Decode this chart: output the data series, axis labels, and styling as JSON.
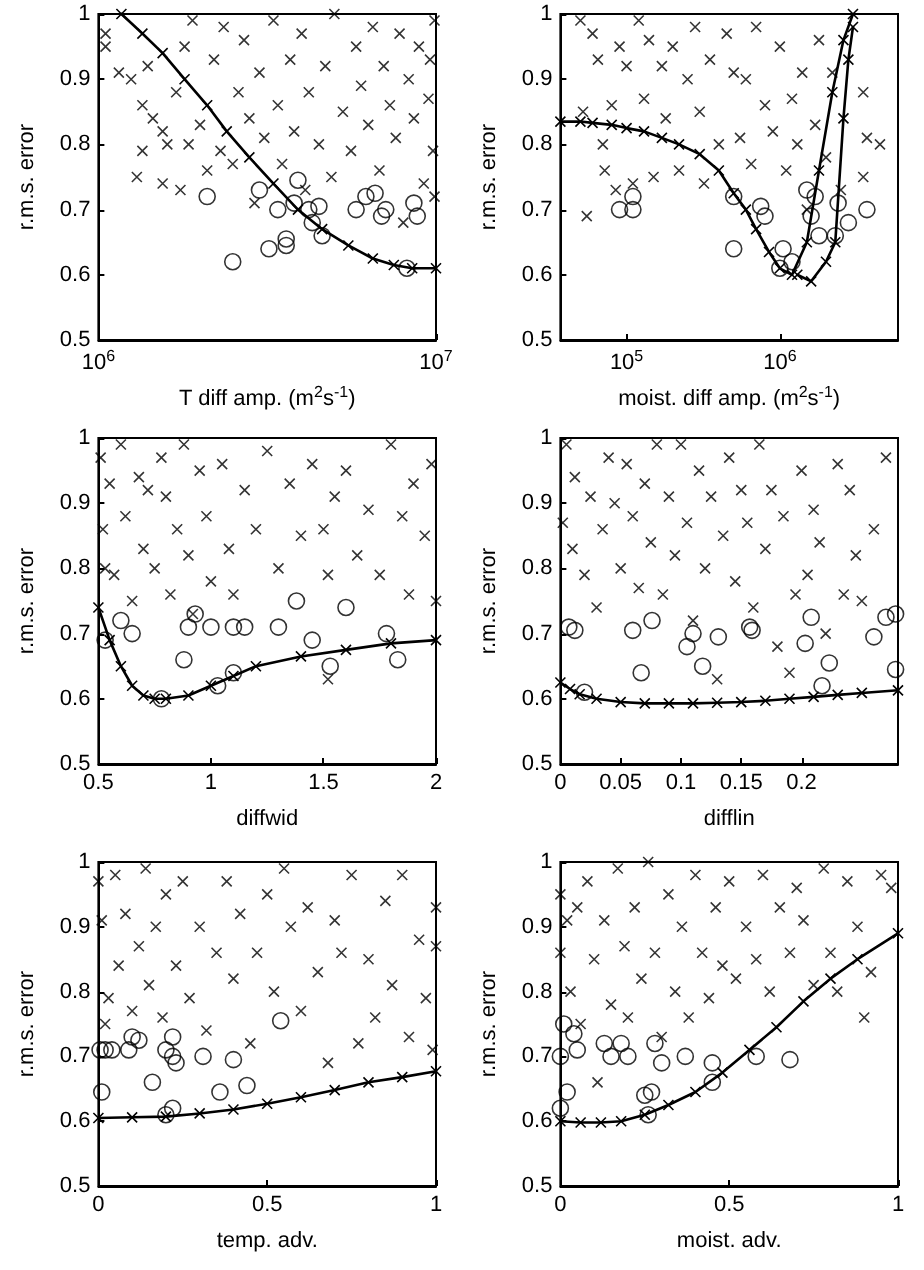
{
  "chart_data": [
    {
      "type": "scatter",
      "xlabel": "T diff amp. (m$^{2}$s$^{-1}$)",
      "ylabel": "r.m.s. error",
      "log": "x",
      "xlim": [
        1000000,
        10000000
      ],
      "xticks": [
        {
          "value": 1000000,
          "label": "10$^{6}$"
        },
        {
          "value": 10000000,
          "label": "10$^{7}$"
        }
      ],
      "ylim": [
        0.5,
        1
      ],
      "yticks": [
        0.5,
        0.6,
        0.7,
        0.8,
        0.9,
        1
      ],
      "series": [
        {
          "marker": "cross",
          "color": "#000000",
          "x": [
            1050000,
            1050000,
            1150000,
            1250000,
            1300000,
            1350000,
            1350000,
            1400000,
            1450000,
            1550000,
            1550000,
            1600000,
            1700000,
            1750000,
            1800000,
            1850000,
            1900000,
            2000000,
            2100000,
            2200000,
            2300000,
            2350000,
            2500000,
            2600000,
            2700000,
            2800000,
            2900000,
            3000000,
            3100000,
            3300000,
            3400000,
            3500000,
            3700000,
            3800000,
            4000000,
            4100000,
            4200000,
            4500000,
            4700000,
            4900000,
            5000000,
            5300000,
            5600000,
            5800000,
            6000000,
            6300000,
            6500000,
            6800000,
            7000000,
            7300000,
            7600000,
            7800000,
            8000000,
            8300000,
            8600000,
            8900000,
            9200000,
            9500000,
            9800000,
            9900000,
            9600000,
            9900000
          ],
          "values": [
            0.97,
            0.95,
            0.91,
            0.9,
            0.75,
            0.86,
            0.79,
            0.92,
            0.84,
            0.82,
            0.74,
            0.8,
            0.88,
            0.73,
            0.95,
            0.8,
            0.99,
            0.83,
            0.76,
            0.93,
            0.79,
            0.98,
            0.77,
            0.88,
            0.96,
            0.84,
            0.71,
            0.91,
            0.81,
            0.99,
            0.86,
            0.77,
            0.93,
            0.82,
            0.97,
            0.73,
            0.88,
            0.8,
            0.92,
            0.75,
            1,
            0.85,
            0.79,
            0.95,
            0.89,
            0.83,
            0.98,
            0.76,
            0.92,
            0.86,
            0.81,
            0.97,
            0.68,
            0.9,
            0.84,
            0.95,
            0.74,
            0.87,
            0.79,
            0.99,
            0.93,
            0.72
          ]
        },
        {
          "marker": "circle",
          "color": "#000000",
          "x": [
            2100000,
            2500000,
            3000000,
            3200000,
            3600000,
            3600000,
            3400000,
            3800000,
            3900000,
            4200000,
            4300000,
            4500000,
            4600000,
            5800000,
            6200000,
            6600000,
            6900000,
            7100000,
            8200000,
            8600000,
            8800000
          ],
          "values": [
            0.72,
            0.62,
            0.73,
            0.64,
            0.645,
            0.655,
            0.7,
            0.71,
            0.745,
            0.7,
            0.68,
            0.705,
            0.66,
            0.7,
            0.72,
            0.725,
            0.69,
            0.7,
            0.61,
            0.71,
            0.69
          ]
        },
        {
          "type": "line",
          "marker": "cross",
          "color": "#000000",
          "x": [
            1170000,
            1350000,
            1550000,
            1800000,
            2100000,
            2400000,
            2800000,
            3300000,
            3900000,
            4600000,
            5500000,
            6500000,
            7500000,
            8500000,
            10000000
          ],
          "values": [
            1,
            0.97,
            0.94,
            0.9,
            0.86,
            0.82,
            0.78,
            0.74,
            0.7,
            0.67,
            0.645,
            0.625,
            0.615,
            0.61,
            0.61
          ]
        }
      ]
    },
    {
      "type": "scatter",
      "xlabel": "moist. diff amp. (m$^{2}$s$^{-1}$)",
      "ylabel": "r.m.s. error",
      "log": "x",
      "xlim": [
        37000,
        5900000
      ],
      "xticks": [
        {
          "value": 100000,
          "label": "10$^{5}$"
        },
        {
          "value": 1000000,
          "label": "10$^{6}$"
        }
      ],
      "ylim": [
        0.5,
        1
      ],
      "yticks": [
        0.5,
        0.6,
        0.7,
        0.8,
        0.9,
        1
      ],
      "series": [
        {
          "marker": "cross",
          "color": "#000000",
          "x": [
            50000,
            52000,
            55000,
            60000,
            65000,
            70000,
            72000,
            80000,
            85000,
            90000,
            100000,
            110000,
            120000,
            130000,
            140000,
            150000,
            170000,
            180000,
            200000,
            220000,
            250000,
            280000,
            300000,
            320000,
            350000,
            400000,
            450000,
            500000,
            550000,
            600000,
            650000,
            700000,
            800000,
            900000,
            1000000,
            1100000,
            1200000,
            1300000,
            1400000,
            1500000,
            1700000,
            1800000,
            2000000,
            2200000,
            2500000,
            3500000,
            3700000,
            4500000,
            3500000
          ],
          "values": [
            0.99,
            0.85,
            0.69,
            0.97,
            0.93,
            0.8,
            0.76,
            0.86,
            0.73,
            0.95,
            0.92,
            0.74,
            0.99,
            0.87,
            0.96,
            0.75,
            0.92,
            0.84,
            0.95,
            0.76,
            0.9,
            0.98,
            0.85,
            0.74,
            0.93,
            0.8,
            0.97,
            0.91,
            0.81,
            0.9,
            0.77,
            0.98,
            0.86,
            0.82,
            0.95,
            0.76,
            0.87,
            0.8,
            0.91,
            0.7,
            0.83,
            0.96,
            0.78,
            0.91,
            0.73,
            0.88,
            0.81,
            0.8,
            0.75
          ]
        },
        {
          "marker": "circle",
          "color": "#000000",
          "x": [
            90000,
            110000,
            110000,
            500000,
            500000,
            750000,
            800000,
            1000000,
            1050000,
            1200000,
            1500000,
            1600000,
            1700000,
            1800000,
            2300000,
            2400000,
            2800000,
            3700000
          ],
          "values": [
            0.7,
            0.7,
            0.72,
            0.64,
            0.72,
            0.705,
            0.69,
            0.61,
            0.64,
            0.62,
            0.73,
            0.69,
            0.72,
            0.66,
            0.66,
            0.71,
            0.68,
            0.7
          ]
        },
        {
          "type": "line",
          "marker": "cross",
          "color": "#000000",
          "x": [
            37000,
            50000,
            60000,
            80000,
            100000,
            130000,
            170000,
            220000,
            300000,
            400000,
            500000,
            600000,
            700000,
            850000,
            1000000,
            1200000,
            1500000,
            1800000,
            2200000,
            2600000,
            3000000
          ],
          "values": [
            0.835,
            0.835,
            0.833,
            0.83,
            0.825,
            0.82,
            0.81,
            0.8,
            0.785,
            0.76,
            0.725,
            0.7,
            0.67,
            0.635,
            0.61,
            0.6,
            0.65,
            0.76,
            0.88,
            0.96,
            1
          ]
        },
        {
          "type": "line",
          "marker": "cross",
          "color": "#000000",
          "x": [
            1300000,
            1600000,
            2000000,
            2300000,
            2600000,
            2800000,
            3000000
          ],
          "values": [
            0.6,
            0.59,
            0.62,
            0.65,
            0.84,
            0.93,
            0.98
          ]
        }
      ]
    },
    {
      "type": "scatter",
      "xlabel": "diffwid",
      "ylabel": "r.m.s. error",
      "xlim": [
        0.5,
        2
      ],
      "xticks": [
        0.5,
        1,
        1.5,
        2
      ],
      "ylim": [
        0.5,
        1
      ],
      "yticks": [
        0.5,
        0.6,
        0.7,
        0.8,
        0.9,
        1
      ],
      "series": [
        {
          "marker": "cross",
          "color": "#000000",
          "x": [
            0.51,
            0.52,
            0.53,
            0.55,
            0.57,
            0.6,
            0.62,
            0.65,
            0.68,
            0.7,
            0.72,
            0.75,
            0.78,
            0.8,
            0.82,
            0.85,
            0.88,
            0.9,
            0.92,
            0.95,
            0.98,
            1,
            1.05,
            1.08,
            1.1,
            1.15,
            1.2,
            1.25,
            1.3,
            1.35,
            1.4,
            1.45,
            1.5,
            1.52,
            1.55,
            1.6,
            1.65,
            1.7,
            1.75,
            1.8,
            1.85,
            1.88,
            1.9,
            1.95,
            1.98,
            2,
            1.52
          ],
          "values": [
            0.97,
            0.86,
            0.8,
            0.93,
            0.79,
            0.99,
            0.88,
            0.75,
            0.94,
            0.83,
            0.92,
            0.8,
            0.97,
            0.91,
            0.76,
            0.86,
            0.99,
            0.82,
            0.73,
            0.95,
            0.88,
            0.78,
            0.96,
            0.83,
            0.76,
            0.92,
            0.86,
            0.98,
            0.8,
            0.93,
            0.85,
            0.96,
            0.86,
            0.79,
            0.91,
            0.95,
            0.82,
            0.89,
            0.79,
            0.99,
            0.88,
            0.76,
            0.93,
            0.85,
            0.96,
            0.75,
            0.63
          ]
        },
        {
          "marker": "circle",
          "color": "#000000",
          "x": [
            0.53,
            0.6,
            0.65,
            0.78,
            0.88,
            0.9,
            0.93,
            1,
            1.03,
            1.1,
            1.1,
            1.15,
            1.3,
            1.38,
            1.45,
            1.53,
            1.6,
            1.78,
            1.83
          ],
          "values": [
            0.69,
            0.72,
            0.7,
            0.6,
            0.66,
            0.71,
            0.73,
            0.71,
            0.62,
            0.71,
            0.64,
            0.71,
            0.71,
            0.75,
            0.69,
            0.65,
            0.74,
            0.7,
            0.66
          ]
        },
        {
          "type": "line",
          "marker": "cross",
          "color": "#000000",
          "x": [
            0.5,
            0.55,
            0.6,
            0.65,
            0.7,
            0.75,
            0.8,
            0.9,
            1,
            1.1,
            1.2,
            1.4,
            1.6,
            1.8,
            2
          ],
          "values": [
            0.74,
            0.69,
            0.65,
            0.62,
            0.605,
            0.6,
            0.6,
            0.605,
            0.62,
            0.635,
            0.65,
            0.665,
            0.675,
            0.685,
            0.69
          ]
        }
      ]
    },
    {
      "type": "scatter",
      "xlabel": "difflin",
      "ylabel": "r.m.s. error",
      "xlim": [
        0,
        0.28
      ],
      "xticks": [
        0,
        0.05,
        0.1,
        0.15,
        0.2
      ],
      "ylim": [
        0.5,
        1
      ],
      "yticks": [
        0.5,
        0.6,
        0.7,
        0.8,
        0.9,
        1
      ],
      "series": [
        {
          "marker": "cross",
          "color": "#000000",
          "x": [
            0.002,
            0.005,
            0.01,
            0.012,
            0.02,
            0.025,
            0.03,
            0.035,
            0.04,
            0.045,
            0.05,
            0.055,
            0.06,
            0.065,
            0.07,
            0.075,
            0.08,
            0.085,
            0.09,
            0.095,
            0.1,
            0.105,
            0.11,
            0.115,
            0.12,
            0.125,
            0.13,
            0.135,
            0.14,
            0.145,
            0.15,
            0.155,
            0.16,
            0.165,
            0.17,
            0.175,
            0.18,
            0.185,
            0.19,
            0.195,
            0.2,
            0.205,
            0.21,
            0.215,
            0.22,
            0.23,
            0.235,
            0.24,
            0.245,
            0.25,
            0.26,
            0.27
          ],
          "values": [
            0.87,
            0.99,
            0.83,
            0.94,
            0.79,
            0.91,
            0.74,
            0.86,
            0.97,
            0.9,
            0.8,
            0.96,
            0.88,
            0.77,
            0.93,
            0.84,
            0.99,
            0.76,
            0.91,
            0.82,
            0.99,
            0.87,
            0.72,
            0.95,
            0.8,
            0.91,
            0.63,
            0.85,
            0.97,
            0.78,
            0.92,
            0.87,
            0.74,
            0.99,
            0.83,
            0.92,
            0.68,
            0.88,
            0.64,
            0.76,
            0.95,
            0.79,
            0.89,
            0.84,
            0.7,
            0.96,
            0.76,
            0.92,
            0.82,
            0.75,
            0.86,
            0.97
          ]
        },
        {
          "marker": "circle",
          "color": "#000000",
          "x": [
            0.007,
            0.012,
            0.02,
            0.067,
            0.06,
            0.076,
            0.105,
            0.11,
            0.118,
            0.131,
            0.159,
            0.157,
            0.208,
            0.203,
            0.223,
            0.217,
            0.26,
            0.27,
            0.278,
            0.278
          ],
          "values": [
            0.71,
            0.705,
            0.61,
            0.64,
            0.705,
            0.72,
            0.68,
            0.7,
            0.65,
            0.695,
            0.705,
            0.71,
            0.725,
            0.685,
            0.655,
            0.62,
            0.695,
            0.725,
            0.645,
            0.73
          ]
        },
        {
          "type": "line",
          "marker": "cross",
          "color": "#000000",
          "x": [
            0,
            0.008,
            0.016,
            0.03,
            0.05,
            0.07,
            0.09,
            0.11,
            0.13,
            0.15,
            0.17,
            0.19,
            0.21,
            0.23,
            0.25,
            0.28
          ],
          "values": [
            0.625,
            0.615,
            0.607,
            0.6,
            0.595,
            0.593,
            0.593,
            0.593,
            0.594,
            0.595,
            0.597,
            0.6,
            0.603,
            0.606,
            0.609,
            0.613
          ]
        }
      ]
    },
    {
      "type": "scatter",
      "xlabel": "temp. adv.",
      "ylabel": "r.m.s. error",
      "xlim": [
        0,
        1
      ],
      "xticks": [
        0,
        0.5,
        1
      ],
      "ylim": [
        0.5,
        1
      ],
      "yticks": [
        0.5,
        0.6,
        0.7,
        0.8,
        0.9,
        1
      ],
      "series": [
        {
          "marker": "cross",
          "color": "#000000",
          "x": [
            0,
            0.01,
            0.02,
            0.03,
            0.05,
            0.06,
            0.08,
            0.1,
            0.12,
            0.14,
            0.15,
            0.17,
            0.19,
            0.2,
            0.23,
            0.25,
            0.27,
            0.3,
            0.32,
            0.35,
            0.38,
            0.4,
            0.42,
            0.45,
            0.47,
            0.5,
            0.52,
            0.55,
            0.57,
            0.6,
            0.62,
            0.65,
            0.68,
            0.7,
            0.72,
            0.75,
            0.77,
            0.8,
            0.82,
            0.85,
            0.87,
            0.9,
            0.92,
            0.95,
            0.97,
            1,
            0.99,
            1
          ],
          "values": [
            0.97,
            0.91,
            0.75,
            0.79,
            0.98,
            0.84,
            0.92,
            0.77,
            0.87,
            0.99,
            0.81,
            0.9,
            0.76,
            0.95,
            0.84,
            0.97,
            0.79,
            0.9,
            0.74,
            0.86,
            0.97,
            0.82,
            0.92,
            0.72,
            0.86,
            0.95,
            0.8,
            0.99,
            0.9,
            0.77,
            0.93,
            0.83,
            0.69,
            0.91,
            0.86,
            0.98,
            0.72,
            0.85,
            0.76,
            0.94,
            0.81,
            0.98,
            0.73,
            0.88,
            0.79,
            0.93,
            0.71,
            0.87
          ]
        },
        {
          "marker": "circle",
          "color": "#000000",
          "x": [
            0.005,
            0.01,
            0.02,
            0.04,
            0.1,
            0.12,
            0.09,
            0.16,
            0.2,
            0.22,
            0.22,
            0.23,
            0.2,
            0.22,
            0.31,
            0.36,
            0.4,
            0.44,
            0.54
          ],
          "values": [
            0.71,
            0.645,
            0.71,
            0.71,
            0.73,
            0.725,
            0.71,
            0.66,
            0.71,
            0.73,
            0.7,
            0.69,
            0.61,
            0.62,
            0.7,
            0.645,
            0.695,
            0.655,
            0.755
          ]
        },
        {
          "type": "line",
          "marker": "cross",
          "color": "#000000",
          "x": [
            0,
            0.1,
            0.2,
            0.3,
            0.4,
            0.5,
            0.6,
            0.7,
            0.8,
            0.9,
            1
          ],
          "values": [
            0.605,
            0.606,
            0.607,
            0.612,
            0.618,
            0.627,
            0.637,
            0.648,
            0.66,
            0.668,
            0.677
          ]
        }
      ]
    },
    {
      "type": "scatter",
      "xlabel": "moist. adv.",
      "ylabel": "r.m.s. error",
      "xlim": [
        0,
        1
      ],
      "xticks": [
        0,
        0.5,
        1
      ],
      "ylim": [
        0.5,
        1
      ],
      "yticks": [
        0.5,
        0.6,
        0.7,
        0.8,
        0.9,
        1
      ],
      "series": [
        {
          "marker": "cross",
          "color": "#000000",
          "x": [
            0,
            0,
            0.02,
            0.03,
            0.05,
            0.06,
            0.08,
            0.1,
            0.11,
            0.13,
            0.15,
            0.17,
            0.19,
            0.2,
            0.22,
            0.24,
            0.26,
            0.28,
            0.3,
            0.32,
            0.34,
            0.36,
            0.38,
            0.4,
            0.42,
            0.44,
            0.46,
            0.48,
            0.5,
            0.52,
            0.55,
            0.58,
            0.6,
            0.62,
            0.65,
            0.68,
            0.7,
            0.72,
            0.75,
            0.78,
            0.8,
            0.82,
            0.85,
            0.88,
            0.9,
            0.92,
            0.95,
            0.98
          ],
          "values": [
            0.95,
            0.86,
            0.91,
            0.8,
            0.93,
            0.75,
            0.97,
            0.85,
            0.66,
            0.91,
            0.78,
            0.99,
            0.87,
            0.76,
            0.93,
            0.82,
            1,
            0.86,
            0.73,
            0.95,
            0.8,
            0.9,
            0.76,
            0.98,
            0.86,
            0.79,
            0.93,
            0.84,
            0.97,
            0.82,
            0.9,
            0.85,
            0.98,
            0.8,
            0.93,
            0.86,
            0.96,
            0.91,
            0.81,
            0.99,
            0.86,
            0.8,
            0.97,
            0.9,
            0.76,
            0.83,
            0.98,
            0.96
          ]
        },
        {
          "marker": "circle",
          "color": "#000000",
          "x": [
            0,
            0,
            0.01,
            0.02,
            0.04,
            0.05,
            0.13,
            0.15,
            0.18,
            0.2,
            0.25,
            0.27,
            0.28,
            0.3,
            0.37,
            0.45,
            0.45,
            0.58,
            0.68,
            0.26
          ],
          "values": [
            0.62,
            0.7,
            0.75,
            0.645,
            0.735,
            0.71,
            0.72,
            0.7,
            0.72,
            0.7,
            0.64,
            0.645,
            0.72,
            0.69,
            0.7,
            0.66,
            0.69,
            0.7,
            0.695,
            0.61
          ]
        },
        {
          "type": "line",
          "marker": "cross",
          "color": "#000000",
          "x": [
            0,
            0.06,
            0.12,
            0.18,
            0.25,
            0.32,
            0.4,
            0.48,
            0.56,
            0.64,
            0.72,
            0.8,
            0.88,
            1
          ],
          "values": [
            0.6,
            0.598,
            0.598,
            0.6,
            0.61,
            0.625,
            0.645,
            0.675,
            0.71,
            0.745,
            0.785,
            0.82,
            0.85,
            0.89
          ]
        }
      ]
    }
  ]
}
